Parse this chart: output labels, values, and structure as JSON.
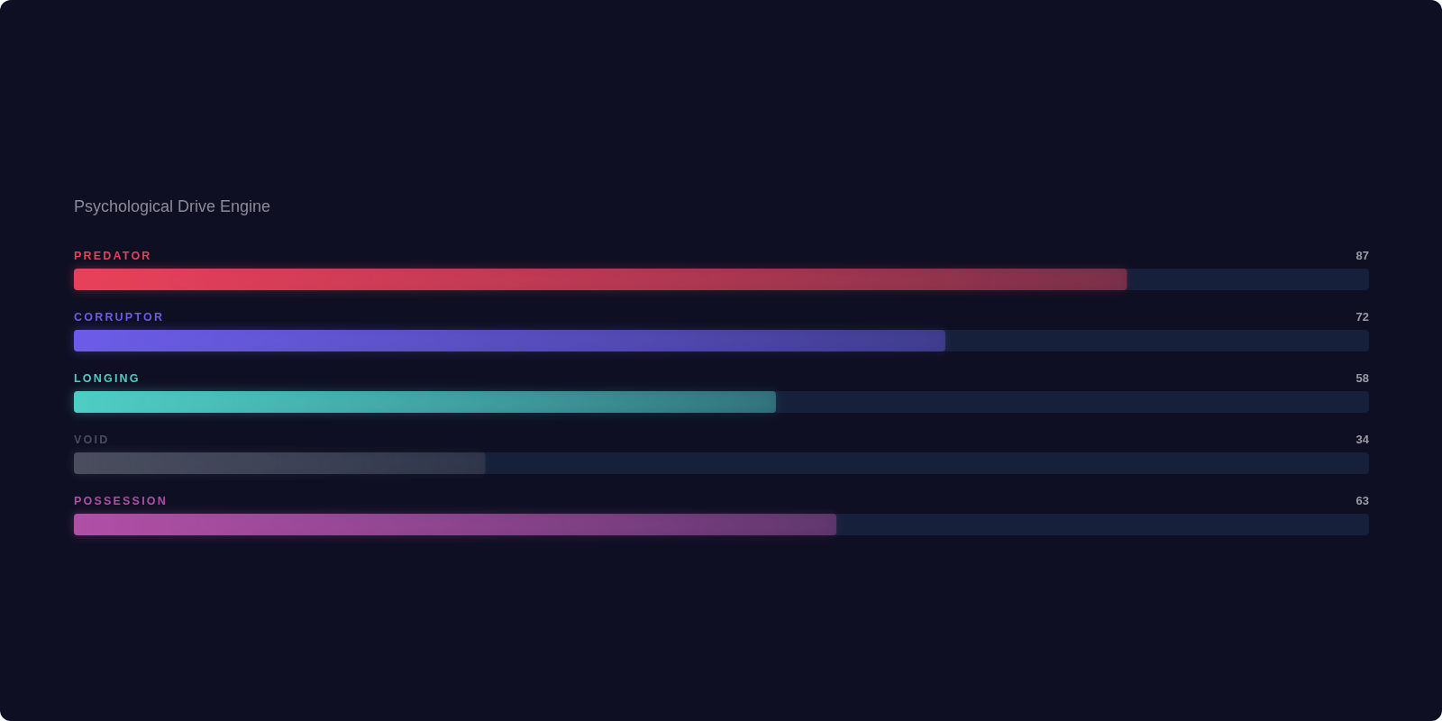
{
  "chart_data": {
    "type": "bar",
    "orientation": "horizontal",
    "subtitle": "Psychological Drive Engine",
    "categories": [
      "PREDATOR",
      "CORRUPTOR",
      "LONGING",
      "VOID",
      "POSSESSION"
    ],
    "values": [
      87,
      72,
      58,
      34,
      63
    ],
    "colors": [
      "#e8405a",
      "#6c5ce7",
      "#4ecdc4",
      "#4a4d5e",
      "#b04fa6"
    ],
    "xlim": [
      0,
      107
    ],
    "data_labels": true
  }
}
